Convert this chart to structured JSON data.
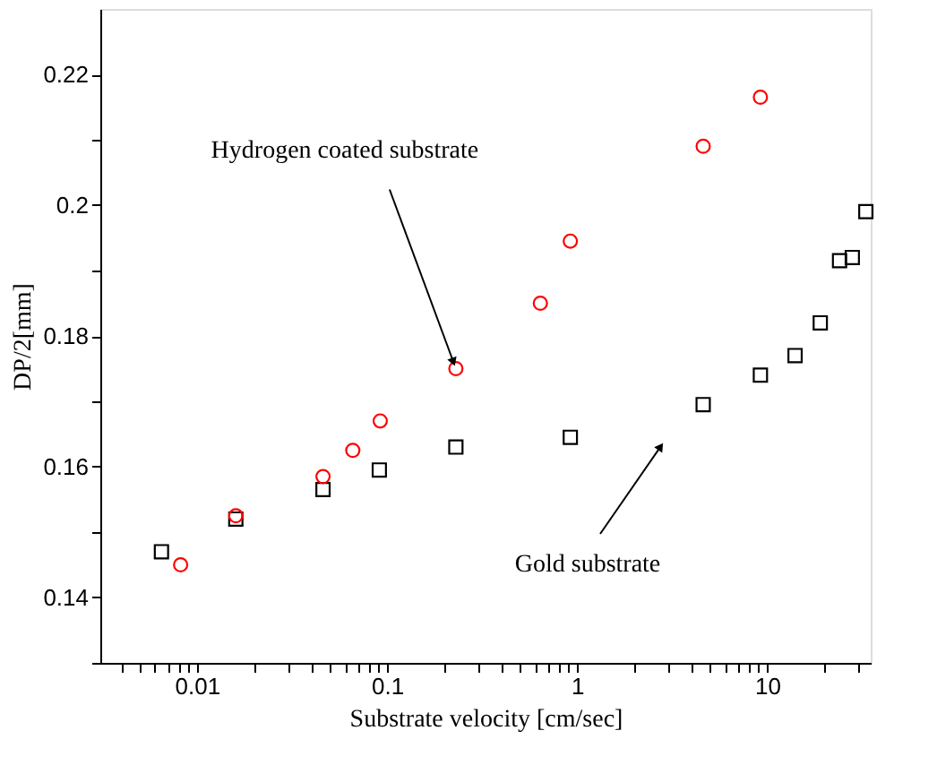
{
  "chart_data": {
    "type": "scatter",
    "xlabel": "Substrate velocity [cm/sec]",
    "ylabel": "DP/2[mm]",
    "log": "x",
    "grid": false,
    "xlim": [
      0.0031,
      35
    ],
    "ylim": [
      0.13,
      0.23
    ],
    "xticks": [
      {
        "value": 0.004,
        "label": null
      },
      {
        "value": 0.005,
        "label": null
      },
      {
        "value": 0.006,
        "label": null
      },
      {
        "value": 0.007,
        "label": null
      },
      {
        "value": 0.008,
        "label": null
      },
      {
        "value": 0.009,
        "label": null
      },
      0.01,
      {
        "value": 0.02,
        "label": null
      },
      {
        "value": 0.03,
        "label": null
      },
      {
        "value": 0.04,
        "label": null
      },
      {
        "value": 0.05,
        "label": null
      },
      {
        "value": 0.06,
        "label": null
      },
      {
        "value": 0.07,
        "label": null
      },
      {
        "value": 0.08,
        "label": null
      },
      {
        "value": 0.09,
        "label": null
      },
      0.1,
      {
        "value": 0.2,
        "label": null
      },
      {
        "value": 0.3,
        "label": null
      },
      {
        "value": 0.4,
        "label": null
      },
      {
        "value": 0.5,
        "label": null
      },
      {
        "value": 0.6,
        "label": null
      },
      {
        "value": 0.7,
        "label": null
      },
      {
        "value": 0.8,
        "label": null
      },
      {
        "value": 0.9,
        "label": null
      },
      1,
      {
        "value": 2,
        "label": null
      },
      {
        "value": 3,
        "label": null
      },
      {
        "value": 4,
        "label": null
      },
      {
        "value": 5,
        "label": null
      },
      {
        "value": 6,
        "label": null
      },
      {
        "value": 7,
        "label": null
      },
      {
        "value": 8,
        "label": null
      },
      {
        "value": 9,
        "label": null
      },
      10,
      {
        "value": 20,
        "label": null
      },
      {
        "value": 30,
        "label": null
      }
    ],
    "yticks": [
      {
        "value": 0.13,
        "label": null
      },
      0.14,
      {
        "value": 0.15,
        "label": null
      },
      0.16,
      {
        "value": 0.17,
        "label": null
      },
      0.18,
      {
        "value": 0.19,
        "label": null
      },
      0.2,
      {
        "value": 0.21,
        "label": null
      },
      0.22
    ],
    "series": [
      {
        "color": "#000000",
        "marker": "square",
        "x": [
          0.0065,
          0.016,
          0.046,
          0.091,
          0.23,
          0.92,
          4.6,
          9.2,
          14,
          19,
          24,
          28,
          33
        ],
        "values": [
          0.147,
          0.152,
          0.1565,
          0.1595,
          0.163,
          0.1645,
          0.1695,
          0.174,
          0.177,
          0.182,
          0.1915,
          0.192,
          0.199
        ]
      },
      {
        "color": "#ff0000",
        "marker": "circle",
        "x": [
          0.0082,
          0.016,
          0.046,
          0.066,
          0.092,
          0.23,
          0.64,
          0.92,
          4.6,
          9.2
        ],
        "values": [
          0.145,
          0.1525,
          0.1585,
          0.1625,
          0.167,
          0.175,
          0.185,
          0.1945,
          0.209,
          0.2165
        ]
      }
    ],
    "annotations": [
      {
        "text": "Hydrogen coated substrate",
        "x": 0.23,
        "y": 0.175
      },
      "Gold substrate"
    ]
  }
}
